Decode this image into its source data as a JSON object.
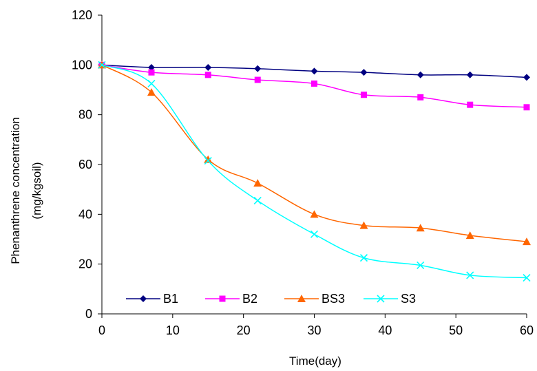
{
  "chart_data": {
    "type": "line",
    "title": "",
    "xlabel": "Time(day)",
    "ylabel_lines": [
      "Phenanthrene concentration",
      "(mg/kgsoil)"
    ],
    "xlim": [
      0,
      60
    ],
    "ylim": [
      0,
      120
    ],
    "xticks": [
      0,
      10,
      20,
      30,
      40,
      50,
      60
    ],
    "yticks": [
      0,
      20,
      40,
      60,
      80,
      100,
      120
    ],
    "grid": false,
    "legend_position": "bottom",
    "series": [
      {
        "name": "B1",
        "color": "#000080",
        "marker": "diamond",
        "x": [
          0,
          7,
          15,
          22,
          30,
          37,
          45,
          52,
          60
        ],
        "y": [
          100,
          99,
          99,
          98.5,
          97.5,
          97,
          96,
          96,
          95
        ]
      },
      {
        "name": "B2",
        "color": "#FF00FF",
        "marker": "square",
        "x": [
          0,
          7,
          15,
          22,
          30,
          37,
          45,
          52,
          60
        ],
        "y": [
          100,
          97,
          96,
          94,
          92.5,
          88,
          87,
          84,
          83
        ]
      },
      {
        "name": "BS3",
        "color": "#FF6600",
        "marker": "triangle",
        "x": [
          0,
          7,
          15,
          22,
          30,
          37,
          45,
          52,
          60
        ],
        "y": [
          100,
          89,
          62,
          52.5,
          40,
          35.5,
          34.5,
          31.5,
          29
        ]
      },
      {
        "name": "S3",
        "color": "#00FFFF",
        "marker": "x",
        "x": [
          0,
          7,
          15,
          22,
          30,
          37,
          45,
          52,
          60
        ],
        "y": [
          100,
          92.5,
          61.5,
          45.5,
          32,
          22.5,
          19.5,
          15.5,
          14.5
        ]
      }
    ]
  }
}
